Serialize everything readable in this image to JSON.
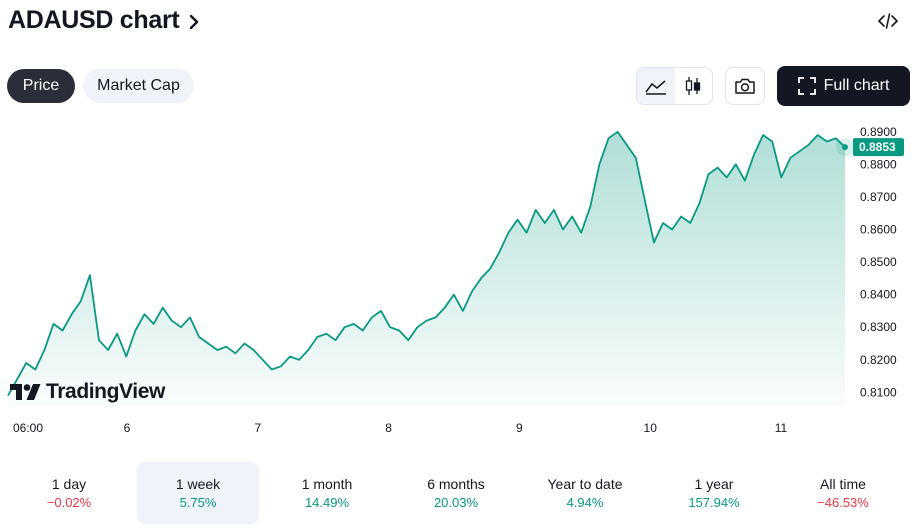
{
  "header": {
    "title": "ADAUSD chart",
    "embed_icon": "code-icon"
  },
  "tabs": [
    {
      "label": "Price",
      "active": true
    },
    {
      "label": "Market Cap",
      "active": false
    }
  ],
  "toolbar": {
    "full_chart_label": "Full chart",
    "icons": [
      "area-chart-icon",
      "candles-icon",
      "camera-icon",
      "fullscreen-icon"
    ]
  },
  "branding": {
    "logo_text": "TradingView"
  },
  "colors": {
    "line": "#089981",
    "price_tag": "#089981",
    "positive": "#089981",
    "negative": "#f23645",
    "dark": "#131722"
  },
  "chart_data": {
    "type": "area",
    "series": [
      {
        "values": [
          0.809,
          0.814,
          0.819,
          0.817,
          0.823,
          0.831,
          0.829,
          0.834,
          0.838,
          0.846,
          0.826,
          0.823,
          0.828,
          0.821,
          0.829,
          0.834,
          0.831,
          0.836,
          0.832,
          0.83,
          0.833,
          0.827,
          0.825,
          0.823,
          0.824,
          0.822,
          0.825,
          0.823,
          0.82,
          0.817,
          0.818,
          0.821,
          0.82,
          0.823,
          0.827,
          0.828,
          0.826,
          0.83,
          0.831,
          0.829,
          0.833,
          0.835,
          0.83,
          0.829,
          0.826,
          0.83,
          0.832,
          0.833,
          0.836,
          0.84,
          0.835,
          0.841,
          0.845,
          0.848,
          0.853,
          0.859,
          0.863,
          0.859,
          0.866,
          0.862,
          0.866,
          0.86,
          0.864,
          0.859,
          0.867,
          0.88,
          0.888,
          0.89,
          0.886,
          0.882,
          0.869,
          0.856,
          0.862,
          0.86,
          0.864,
          0.862,
          0.868,
          0.877,
          0.879,
          0.876,
          0.88,
          0.875,
          0.883,
          0.889,
          0.887,
          0.876,
          0.882,
          0.884,
          0.886,
          0.889,
          0.887,
          0.888,
          0.8853
        ]
      }
    ],
    "x_ticks": [
      "06:00",
      "6",
      "7",
      "8",
      "9",
      "10",
      "11"
    ],
    "y_ticks": [
      "0.8100",
      "0.8200",
      "0.8300",
      "0.8400",
      "0.8500",
      "0.8600",
      "0.8700",
      "0.8800",
      "0.8900"
    ],
    "ylim": [
      0.8055,
      0.893
    ],
    "last_price": "0.8853",
    "grid": false
  },
  "periods": [
    {
      "label": "1 day",
      "value": "−0.02%",
      "sign": "neg",
      "active": false
    },
    {
      "label": "1 week",
      "value": "5.75%",
      "sign": "pos",
      "active": true
    },
    {
      "label": "1 month",
      "value": "14.49%",
      "sign": "pos",
      "active": false
    },
    {
      "label": "6 months",
      "value": "20.03%",
      "sign": "pos",
      "active": false
    },
    {
      "label": "Year to date",
      "value": "4.94%",
      "sign": "pos",
      "active": false
    },
    {
      "label": "1 year",
      "value": "157.94%",
      "sign": "pos",
      "active": false
    },
    {
      "label": "All time",
      "value": "−46.53%",
      "sign": "neg",
      "active": false
    }
  ]
}
